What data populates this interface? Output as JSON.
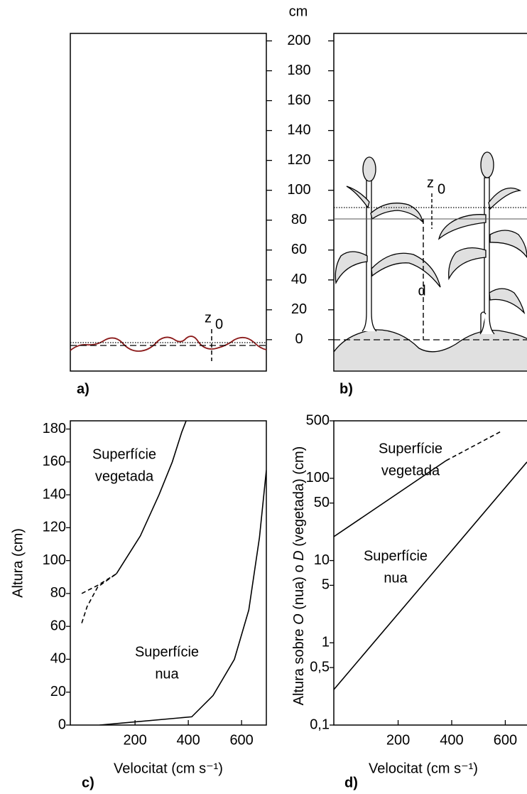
{
  "chart_data": [
    {
      "type": "scale",
      "ylabel": "cm",
      "ylim": [
        -21,
        205
      ],
      "yticks": [
        0,
        20,
        40,
        60,
        80,
        100,
        120,
        140,
        160,
        180,
        200
      ],
      "panels": [
        "a)",
        "b)"
      ],
      "annotations": [
        {
          "text": "z",
          "sub": "0"
        },
        {
          "text": "z",
          "sub": "0"
        },
        {
          "text": "d"
        }
      ]
    },
    {
      "type": "line",
      "panel": "c)",
      "xlabel": "Velocitat (cm s⁻¹)",
      "ylabel": "Altura (cm)",
      "xlim": [
        -43,
        693
      ],
      "ylim": [
        0,
        185
      ],
      "xticks": [
        200,
        400,
        600
      ],
      "yticks": [
        0,
        20,
        40,
        60,
        80,
        100,
        120,
        140,
        160,
        180
      ],
      "series": [
        {
          "color": "#000000",
          "dash": false,
          "x": [
            130,
            220,
            290,
            340,
            375,
            392
          ],
          "values": [
            92,
            115,
            140,
            160,
            178,
            185
          ]
        },
        {
          "color": "#000000",
          "dash": true,
          "x": [
            0,
            60,
            130
          ],
          "values": [
            80,
            85,
            92
          ]
        },
        {
          "color": "#000000",
          "dash": true,
          "x": [
            0,
            20,
            60,
            130
          ],
          "values": [
            62,
            72,
            84,
            92
          ]
        },
        {
          "color": "#000000",
          "dash": false,
          "x": [
            67,
            413,
            493,
            573,
            627,
            667,
            693
          ],
          "values": [
            0,
            5,
            18,
            40,
            70,
            114,
            155
          ]
        }
      ],
      "labels": [
        {
          "lines": [
            "Superfície",
            "vegetada"
          ]
        },
        {
          "lines": [
            "Superfície",
            "nua"
          ]
        }
      ]
    },
    {
      "type": "line",
      "panel": "d)",
      "xlabel": "Velocitat (cm s⁻¹)",
      "log_y": true,
      "ylabel": [
        "Altura sobre ",
        "O",
        " (nua) o ",
        "D",
        " (vegetada) (cm)"
      ],
      "ylabel_italic": [
        false,
        true,
        false,
        true,
        false
      ],
      "xlim": [
        -40,
        681
      ],
      "ylim": [
        0.1,
        500
      ],
      "xticks": [
        200,
        400,
        600
      ],
      "yticks": [
        {
          "value": 0.1,
          "label": "0,1"
        },
        {
          "value": 0.5,
          "label": "0,5"
        },
        1,
        5,
        10,
        50,
        100,
        500
      ],
      "series": [
        {
          "color": "#000000",
          "dash": false,
          "x": [
            -40,
            379
          ],
          "values": [
            19.5,
            164
          ]
        },
        {
          "color": "#000000",
          "dash": true,
          "x": [
            379,
            583
          ],
          "values": [
            164,
            370
          ]
        },
        {
          "color": "#000000",
          "dash": false,
          "x": [
            -40,
            681
          ],
          "values": [
            0.27,
            158
          ]
        }
      ],
      "labels": [
        {
          "lines": [
            "Superfície",
            "vegetada"
          ]
        },
        {
          "lines": [
            "Superfície",
            "nua"
          ]
        }
      ]
    }
  ]
}
